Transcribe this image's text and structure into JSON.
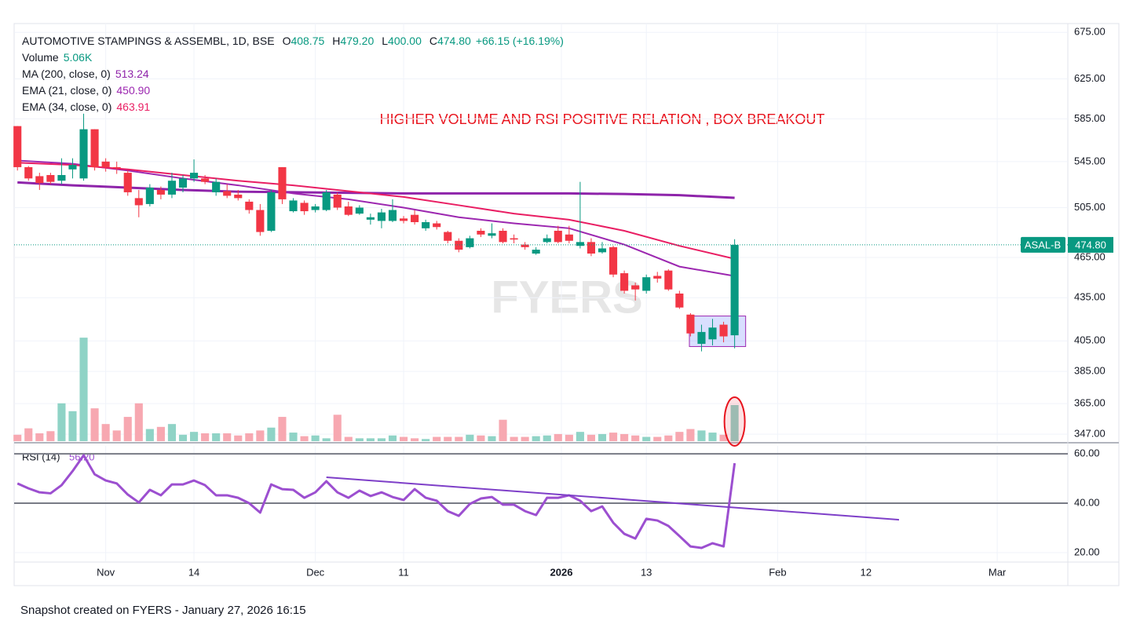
{
  "chart_data": {
    "type": "candlestick",
    "title": "AUTOMOTIVE STAMPINGS & ASSEMBL, 1D, BSE",
    "ohlc_legend": [
      {
        "label": "O",
        "text": "408.75"
      },
      {
        "label": "H",
        "text": "479.20"
      },
      {
        "label": "L",
        "text": "400.00"
      },
      {
        "label": "C",
        "text": "474.80"
      }
    ],
    "change": "+66.15 (+16.19%)",
    "annotation": "HIGHER VOLUME AND RSI POSITIVE RELATION , BOX BREAKOUT",
    "watermark": "FYERS",
    "up_color": "#089981",
    "down_color": "#f23645",
    "volume_up_color": "#8fd3c6",
    "volume_down_color": "#f7a8b1",
    "log_scale": true,
    "grid": true,
    "xlim": [
      -0.3,
      95.2
    ],
    "xticks": [
      {
        "value": 8,
        "label": "Nov"
      },
      {
        "value": 16,
        "label": "14"
      },
      {
        "value": 27,
        "label": "Dec"
      },
      {
        "value": 35,
        "label": "11"
      },
      {
        "value": 49.3,
        "label": "2026"
      },
      {
        "value": 57,
        "label": "13"
      },
      {
        "value": 68.9,
        "label": "Feb"
      },
      {
        "value": 76.9,
        "label": "12"
      },
      {
        "value": 88.8,
        "label": "Mar"
      }
    ],
    "ylim": [
      343,
      685
    ],
    "yticks": [
      {
        "value": 675,
        "label": "675.00"
      },
      {
        "value": 625,
        "label": "625.00"
      },
      {
        "value": 585,
        "label": "585.00"
      },
      {
        "value": 545,
        "label": "545.00"
      },
      {
        "value": 505,
        "label": "505.00"
      },
      {
        "value": 465,
        "label": "465.00"
      },
      {
        "value": 435,
        "label": "435.00"
      },
      {
        "value": 405,
        "label": "405.00"
      },
      {
        "value": 385,
        "label": "385.00"
      },
      {
        "value": 365,
        "label": "365.00"
      },
      {
        "value": 347,
        "label": "347.00"
      }
    ],
    "open": [
      578,
      540,
      532,
      533,
      528,
      538,
      530,
      575,
      545,
      540,
      535,
      513,
      508,
      520,
      516,
      522,
      530,
      530,
      518,
      519,
      516,
      510,
      503,
      486,
      540,
      502,
      509,
      503,
      503,
      516,
      506,
      500,
      495,
      494,
      494,
      496,
      499,
      488,
      492,
      485,
      478,
      473,
      486,
      482,
      486,
      480,
      475,
      468,
      477,
      486,
      483,
      474,
      477,
      469,
      473,
      453,
      444,
      440,
      451,
      455,
      438,
      423,
      403,
      406,
      416,
      408.75
    ],
    "high": [
      578,
      541,
      535,
      535,
      548,
      548,
      590,
      575,
      548,
      545,
      537,
      520,
      525,
      523,
      535,
      533,
      547,
      533,
      530,
      525,
      520,
      512,
      508,
      520,
      540,
      513,
      511,
      508,
      520,
      518,
      510,
      507,
      500,
      504,
      512,
      498,
      503,
      495,
      494,
      486,
      480,
      482,
      488,
      492,
      488,
      483,
      477,
      473,
      483,
      490,
      490,
      527,
      480,
      477,
      474,
      455,
      446,
      452,
      454,
      456,
      440,
      424,
      416,
      420,
      418,
      479.2
    ],
    "low": [
      537,
      528,
      520,
      525,
      525,
      530,
      528,
      537,
      536,
      534,
      515,
      497,
      506,
      512,
      513,
      518,
      527,
      525,
      515,
      513,
      511,
      500,
      482,
      485,
      508,
      501,
      499,
      501,
      502,
      503,
      498,
      499,
      491,
      488,
      493,
      492,
      491,
      486,
      487,
      476,
      469,
      472,
      481,
      480,
      476,
      476,
      471,
      467,
      476,
      476,
      476,
      472,
      466,
      468,
      450,
      438,
      433,
      438,
      446,
      440,
      427,
      408,
      398,
      402,
      404,
      400
    ],
    "close": [
      540,
      530,
      526,
      527,
      533,
      542,
      575,
      540,
      540,
      539,
      518,
      507,
      522,
      516,
      528,
      530,
      535,
      527,
      527,
      515,
      513,
      503,
      485,
      518,
      512,
      511,
      502,
      506,
      518,
      505,
      499,
      505,
      497,
      501,
      503,
      494,
      493,
      493,
      489,
      478,
      471,
      480,
      483,
      484,
      477,
      479,
      473,
      471,
      480,
      477,
      478,
      477,
      468,
      472,
      452,
      440,
      441,
      450,
      449,
      441,
      428,
      410,
      411,
      414,
      408,
      474.8
    ],
    "volume": [
      0.9,
      1.8,
      1.1,
      1.4,
      5.3,
      4.2,
      14.5,
      4.6,
      2.4,
      1.5,
      3.4,
      5.3,
      1.7,
      2.0,
      2.4,
      0.9,
      1.3,
      1.1,
      1.1,
      1.1,
      0.8,
      1.1,
      1.5,
      1.9,
      3.4,
      1.2,
      0.7,
      0.8,
      0.4,
      3.7,
      0.6,
      0.4,
      0.4,
      0.4,
      0.8,
      0.6,
      0.4,
      0.3,
      0.6,
      0.6,
      0.6,
      0.9,
      0.8,
      0.7,
      3.0,
      0.6,
      0.6,
      0.7,
      0.8,
      1.0,
      0.9,
      1.3,
      0.9,
      1.0,
      1.2,
      1.0,
      0.8,
      0.6,
      0.6,
      0.8,
      1.3,
      1.7,
      1.5,
      1.2,
      0.9,
      5.06
    ],
    "volume_ylim": [
      0,
      58.5
    ],
    "volume_legend": {
      "name": "Volume",
      "value_label": "5.06K"
    },
    "series": [
      {
        "name": "MA (200, close, 0)",
        "value_label": "513.24",
        "color": "#8e24aa",
        "width": 3,
        "x": [
          0,
          5,
          10,
          15,
          20,
          25,
          30,
          35,
          40,
          45,
          50,
          55,
          60,
          65
        ],
        "values": [
          526.5,
          524,
          522,
          520,
          518.5,
          518,
          517.5,
          517,
          517,
          517,
          517,
          516.5,
          515.5,
          513.24
        ]
      },
      {
        "name": "EMA (21, close, 0)",
        "value_label": "450.90",
        "color": "#9c27b0",
        "width": 2,
        "x": [
          0,
          5,
          10,
          15,
          20,
          25,
          30,
          35,
          40,
          45,
          50,
          55,
          60,
          65
        ],
        "values": [
          546,
          543,
          537,
          530,
          524,
          517,
          512,
          505,
          497,
          492,
          488,
          475,
          458,
          450.9
        ]
      },
      {
        "name": "EMA (34, close, 0)",
        "value_label": "463.91",
        "color": "#e91e63",
        "width": 2,
        "x": [
          0,
          5,
          10,
          15,
          20,
          25,
          30,
          35,
          40,
          45,
          50,
          55,
          60,
          65
        ],
        "values": [
          544,
          542,
          538,
          533,
          528,
          524,
          519,
          514,
          507,
          500,
          495,
          486,
          474,
          463.91
        ]
      }
    ],
    "box": {
      "x": [
        60.9,
        66
      ],
      "values": [
        401.2,
        422
      ]
    },
    "last_price": {
      "name": "ASAL-B",
      "label": "474.80"
    },
    "rsi": {
      "name": "RSI (14)",
      "value_label": "56.20",
      "color": "#9c4fd0",
      "ylim": [
        16.5,
        63.2
      ],
      "yticks": [
        {
          "value": 60,
          "label": "60.00"
        },
        {
          "value": 40,
          "label": "40.00"
        },
        {
          "value": 20,
          "label": "20.00"
        }
      ],
      "levels": [
        60,
        40
      ],
      "values": [
        48,
        46,
        44.4,
        44,
        47.3,
        53,
        59.4,
        51.7,
        49.2,
        48,
        43.5,
        40.3,
        45.4,
        43.2,
        47.6,
        47.6,
        49.2,
        47.3,
        43.2,
        43.2,
        42.2,
        40,
        36.2,
        47.6,
        45.7,
        45.4,
        42.2,
        44.4,
        48.9,
        44.4,
        42.2,
        45.1,
        42.9,
        44.4,
        42.5,
        41.3,
        45.7,
        42.2,
        41,
        36.8,
        34.9,
        39.7,
        41.9,
        42.5,
        39.4,
        39.4,
        36.8,
        35.2,
        42.2,
        42.2,
        43.2,
        41,
        36.8,
        38.7,
        32.1,
        27.6,
        25.7,
        33.7,
        33,
        30.8,
        26.7,
        22.5,
        21.9,
        23.8,
        22.5,
        56.2
      ],
      "trendline": {
        "x": [
          28,
          79.9
        ],
        "values": [
          50.5,
          33.3
        ]
      }
    }
  },
  "footer": "Snapshot created on FYERS - January 27, 2026 16:15"
}
